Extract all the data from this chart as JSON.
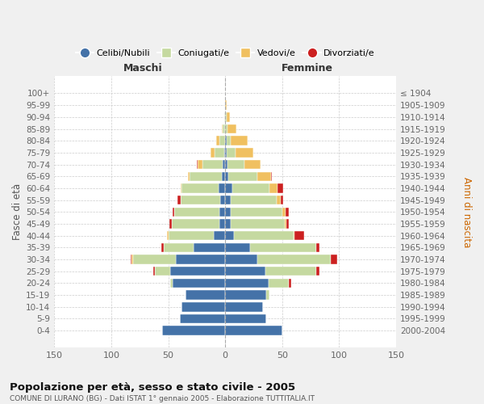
{
  "age_groups": [
    "0-4",
    "5-9",
    "10-14",
    "15-19",
    "20-24",
    "25-29",
    "30-34",
    "35-39",
    "40-44",
    "45-49",
    "50-54",
    "55-59",
    "60-64",
    "65-69",
    "70-74",
    "75-79",
    "80-84",
    "85-89",
    "90-94",
    "95-99",
    "100+"
  ],
  "birth_years": [
    "2000-2004",
    "1995-1999",
    "1990-1994",
    "1985-1989",
    "1980-1984",
    "1975-1979",
    "1970-1974",
    "1965-1969",
    "1960-1964",
    "1955-1959",
    "1950-1954",
    "1945-1949",
    "1940-1944",
    "1935-1939",
    "1930-1934",
    "1925-1929",
    "1920-1924",
    "1915-1919",
    "1910-1914",
    "1905-1909",
    "≤ 1904"
  ],
  "male": {
    "celibi": [
      55,
      40,
      38,
      35,
      46,
      48,
      43,
      28,
      10,
      5,
      5,
      4,
      6,
      3,
      2,
      1,
      0,
      0,
      0,
      0,
      0
    ],
    "coniugati": [
      0,
      0,
      0,
      0,
      2,
      14,
      38,
      26,
      40,
      42,
      40,
      35,
      32,
      28,
      18,
      8,
      5,
      2,
      1,
      0,
      0
    ],
    "vedovi": [
      0,
      0,
      0,
      0,
      0,
      0,
      1,
      0,
      1,
      0,
      0,
      0,
      1,
      2,
      4,
      4,
      3,
      1,
      0,
      0,
      0
    ],
    "divorziati": [
      0,
      0,
      0,
      0,
      0,
      1,
      1,
      2,
      0,
      2,
      1,
      3,
      0,
      0,
      1,
      0,
      0,
      0,
      0,
      0,
      0
    ]
  },
  "female": {
    "nubili": [
      50,
      36,
      33,
      36,
      38,
      35,
      28,
      22,
      8,
      5,
      5,
      5,
      6,
      3,
      2,
      1,
      1,
      0,
      0,
      0,
      0
    ],
    "coniugate": [
      0,
      0,
      0,
      3,
      18,
      45,
      65,
      58,
      52,
      47,
      45,
      40,
      33,
      25,
      15,
      8,
      4,
      2,
      1,
      0,
      0
    ],
    "vedove": [
      0,
      0,
      0,
      0,
      0,
      0,
      0,
      0,
      1,
      2,
      3,
      4,
      7,
      12,
      14,
      16,
      15,
      8,
      3,
      1,
      0
    ],
    "divorziate": [
      0,
      0,
      0,
      0,
      2,
      3,
      5,
      3,
      8,
      2,
      3,
      2,
      5,
      1,
      0,
      0,
      0,
      0,
      0,
      0,
      0
    ]
  },
  "colors": {
    "celibi": "#4472a8",
    "coniugati": "#c5d9a0",
    "vedovi": "#f0c060",
    "divorziati": "#cc2020"
  },
  "xlim": 150,
  "title": "Popolazione per età, sesso e stato civile - 2005",
  "subtitle": "COMUNE DI LURANO (BG) - Dati ISTAT 1° gennaio 2005 - Elaborazione TUTTITALIA.IT",
  "ylabel_left": "Fasce di età",
  "ylabel_right": "Anni di nascita",
  "xlabel_left": "Maschi",
  "xlabel_right": "Femmine",
  "legend_labels": [
    "Celibi/Nubili",
    "Coniugati/e",
    "Vedovi/e",
    "Divorziati/e"
  ],
  "bg_color": "#f0f0f0",
  "plot_bg_color": "#ffffff"
}
